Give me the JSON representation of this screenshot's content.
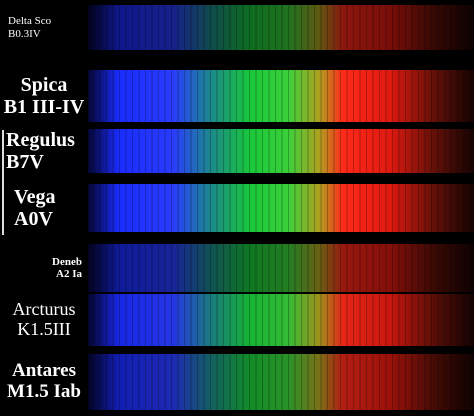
{
  "spectra": [
    {
      "name": "Delta Sco",
      "class": "B0.3IV"
    },
    {
      "name": "Spica",
      "class": "B1 III-IV"
    },
    {
      "name": "Regulus",
      "class": "B7V"
    },
    {
      "name": "Vega",
      "class": "A0V"
    },
    {
      "name": "Deneb",
      "class": "A2 Ia"
    },
    {
      "name": "Arcturus",
      "class": "K1.5III"
    },
    {
      "name": "Antares",
      "class": "M1.5 Iab"
    }
  ]
}
